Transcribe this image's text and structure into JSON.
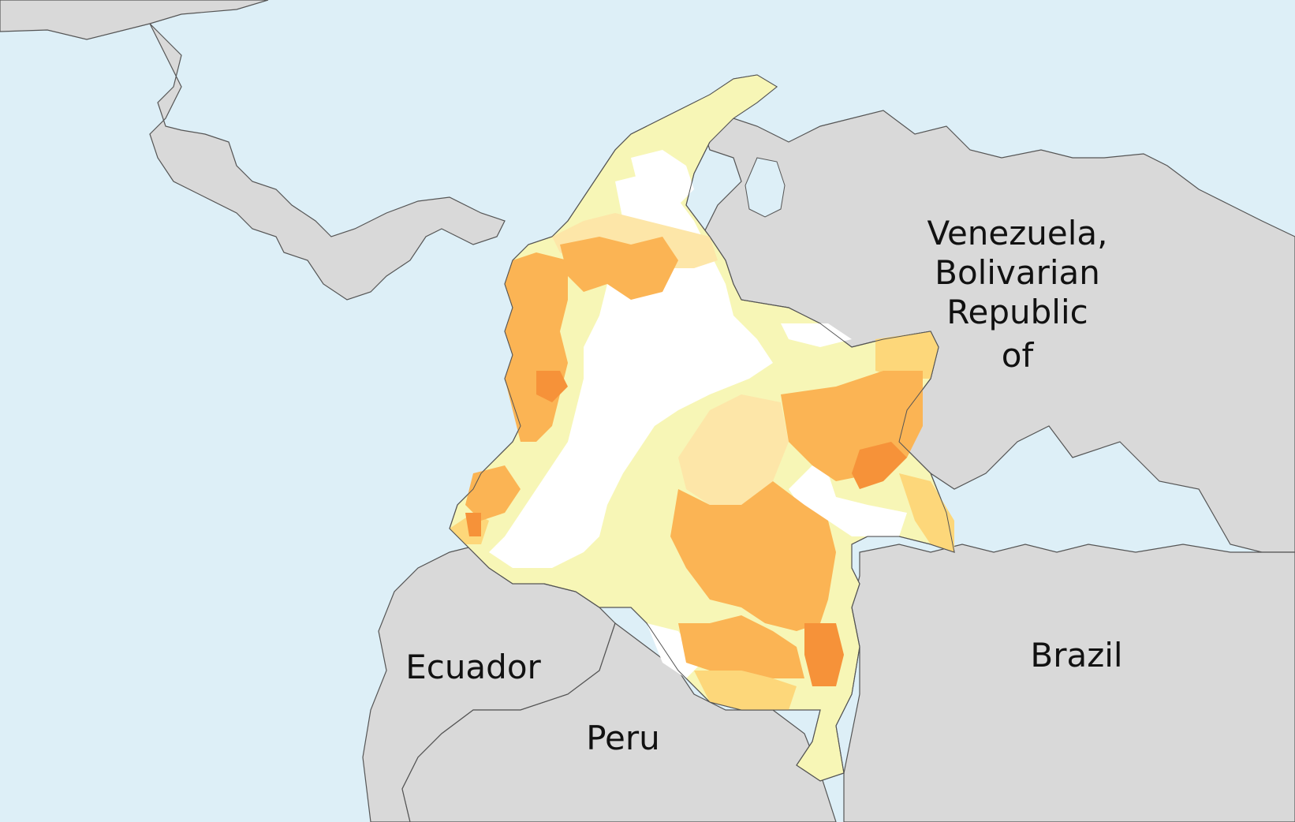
{
  "colors": {
    "sea": "#ddeff7",
    "land": "#d9d9d9",
    "border": "#555555",
    "level_0": "#ffffff",
    "level_1": "#f7f6b6",
    "level_2": "#fde6a8",
    "level_3": "#fdd77a",
    "level_4": "#fbb454",
    "level_5": "#f69239"
  },
  "labels": {
    "venezuela": [
      "Venezuela,",
      "Bolivarian",
      "Republic",
      "of"
    ],
    "ecuador": "Ecuador",
    "peru": "Peru",
    "brazil": "Brazil"
  }
}
